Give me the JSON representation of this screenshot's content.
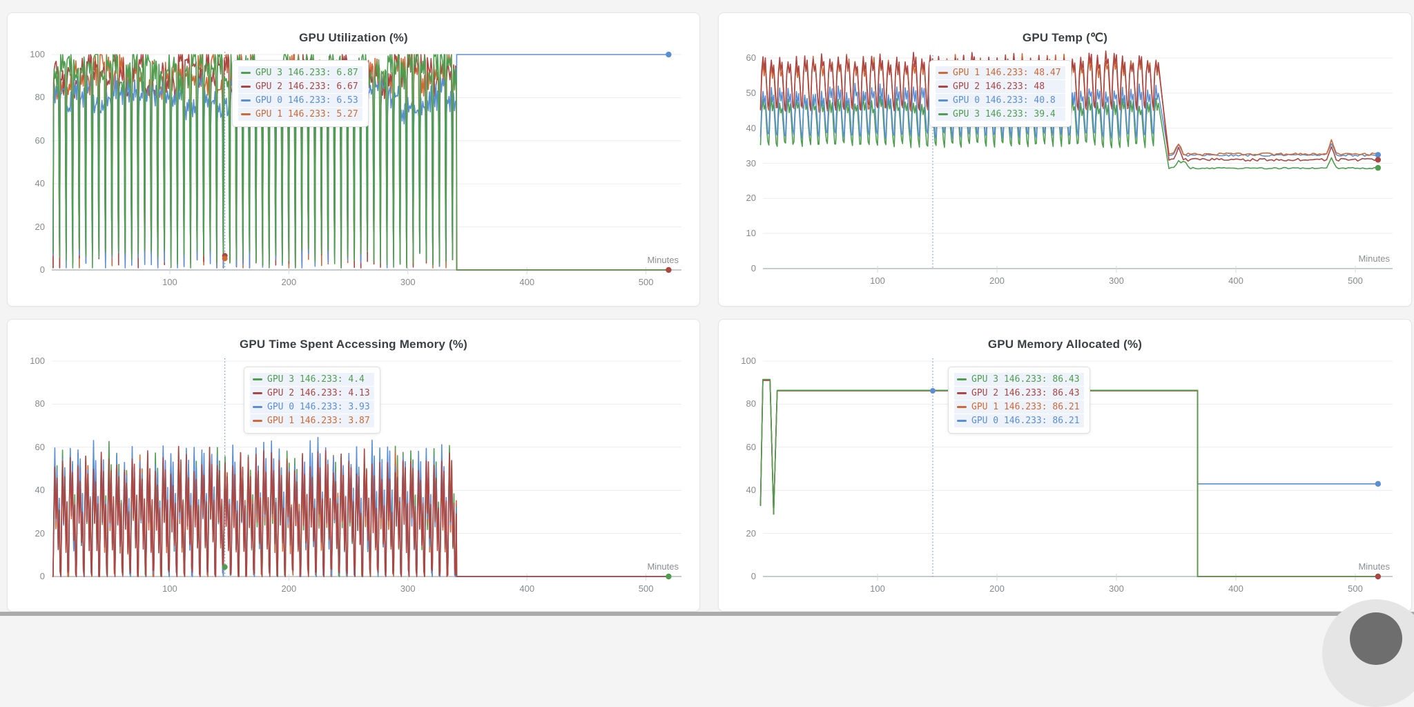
{
  "page": {
    "background": "#f4f4f5",
    "bottom_bar_color": "#ababab"
  },
  "fab": {
    "outer_color": "#e5e5e5",
    "inner_color": "#6e6e6e"
  },
  "palette": {
    "green": "#4f9e4f",
    "red": "#ab4642",
    "blue": "#5a8fd4",
    "orange": "#cd6a38"
  },
  "cursor": {
    "x_label": "146.233",
    "line_color": "#6b99d8"
  },
  "chart_data": [
    {
      "type": "line",
      "title": "GPU Utilization (%)",
      "xlabel": "Minutes",
      "ylim": [
        0,
        100
      ],
      "xlim": [
        0,
        529
      ],
      "yticks": [
        0,
        20,
        40,
        60,
        80,
        100
      ],
      "xticks": [
        100,
        200,
        300,
        400,
        500
      ],
      "grid": "horizontal",
      "legend_position": "tooltip-floating",
      "cursor_x": 146.233,
      "tooltip": {
        "left": 325,
        "top": 68,
        "rows": [
          {
            "color": "green",
            "label": "GPU 3",
            "x": "146.233",
            "value": "6.87"
          },
          {
            "color": "red",
            "label": "GPU 2",
            "x": "146.233",
            "value": "6.67"
          },
          {
            "color": "blue",
            "label": "GPU 0",
            "x": "146.233",
            "value": "6.53"
          },
          {
            "color": "orange",
            "label": "GPU 1",
            "x": "146.233",
            "value": "5.27"
          }
        ]
      },
      "series": [
        {
          "name": "GPU 1",
          "color": "orange",
          "segments": [
            {
              "mode": "osc",
              "t": [
                2,
                341
              ],
              "min": 1,
              "max": 98,
              "period": 5.5,
              "waveform": "dutyhigh",
              "seed": 7
            },
            {
              "mode": "flat",
              "t": [
                341,
                519
              ],
              "value": 0
            }
          ]
        },
        {
          "name": "GPU 2",
          "color": "red",
          "segments": [
            {
              "mode": "osc",
              "t": [
                2,
                341
              ],
              "min": 1,
              "max": 99.5,
              "period": 5.5,
              "waveform": "dutyhigh",
              "seed": 3
            },
            {
              "mode": "flat",
              "t": [
                341,
                519
              ],
              "value": 0
            }
          ]
        },
        {
          "name": "GPU 0",
          "color": "blue",
          "segments": [
            {
              "mode": "osc",
              "t": [
                2,
                341
              ],
              "min": 1,
              "max": 87,
              "period": 5.5,
              "waveform": "dutyhigh",
              "seed": 5
            },
            {
              "mode": "flat",
              "t": [
                341,
                519
              ],
              "value": 100
            }
          ]
        },
        {
          "name": "GPU 3",
          "color": "green",
          "segments": [
            {
              "mode": "osc",
              "t": [
                2,
                341
              ],
              "min": 1,
              "max": 101,
              "period": 5.5,
              "waveform": "dutyhigh",
              "seed": 9
            },
            {
              "mode": "flat",
              "t": [
                341,
                519
              ],
              "value": 0
            }
          ]
        }
      ],
      "markers": [
        {
          "x": 519,
          "y": 100,
          "color": "blue"
        },
        {
          "x": 519,
          "y": 0,
          "color": "red"
        }
      ],
      "cursor_dots": [
        {
          "y": 6.6,
          "color": "red"
        },
        {
          "y": 5.3,
          "color": "orange"
        }
      ],
      "layout": {
        "plotLeft": 64,
        "plotRight": 976,
        "plotTop": 60,
        "axisY": 372,
        "xmap": {
          "a": 62.5,
          "b": 1.7243
        },
        "ymap": {
          "zero": 372,
          "unit": 3.12
        }
      }
    },
    {
      "type": "line",
      "title": "GPU Temp (℃)",
      "xlabel": "Minutes",
      "ylim": [
        0,
        62
      ],
      "xlim": [
        0,
        529
      ],
      "yticks": [
        0,
        10,
        20,
        30,
        40,
        50,
        60
      ],
      "xticks": [
        100,
        200,
        300,
        400,
        500
      ],
      "grid": "horizontal",
      "legend_position": "tooltip-floating",
      "cursor_x": 146.233,
      "tooltip": {
        "left": 305,
        "top": 68,
        "rows": [
          {
            "color": "orange",
            "label": "GPU 1",
            "x": "146.233",
            "value": "48.47"
          },
          {
            "color": "red",
            "label": "GPU 2",
            "x": "146.233",
            "value": "48"
          },
          {
            "color": "blue",
            "label": "GPU 0",
            "x": "146.233",
            "value": "40.8"
          },
          {
            "color": "green",
            "label": "GPU 3",
            "x": "146.233",
            "value": "39.4"
          }
        ]
      },
      "series": [
        {
          "name": "GPU 3",
          "color": "green",
          "segments": [
            {
              "mode": "osc",
              "t": [
                2,
                336
              ],
              "min": 33.5,
              "max": 49,
              "period": 7,
              "waveform": "wave",
              "seed": 11
            },
            {
              "mode": "flat",
              "t": [
                344,
                519
              ],
              "value": 28.6,
              "noise": 0.2,
              "seed": 31,
              "bumps": [
                [
                  352,
                  2.2
                ],
                [
                  357,
                  2.0
                ],
                [
                  480,
                  3.0
                ]
              ]
            }
          ]
        },
        {
          "name": "GPU 0",
          "color": "blue",
          "segments": [
            {
              "mode": "osc",
              "t": [
                2,
                336
              ],
              "min": 36,
              "max": 52,
              "period": 7,
              "waveform": "wave",
              "seed": 13
            },
            {
              "mode": "flat",
              "t": [
                344,
                519
              ],
              "value": 32.3,
              "noise": 0.3,
              "seed": 33,
              "bumps": [
                [
                  352,
                  3.0
                ],
                [
                  480,
                  3.5
                ]
              ]
            }
          ]
        },
        {
          "name": "GPU 1",
          "color": "orange",
          "segments": [
            {
              "mode": "osc",
              "t": [
                2,
                336
              ],
              "min": 43.5,
              "max": 60.5,
              "period": 7,
              "waveform": "wave",
              "seed": 15
            },
            {
              "mode": "flat",
              "t": [
                344,
                519
              ],
              "value": 32.6,
              "noise": 0.35,
              "seed": 35,
              "bumps": [
                [
                  352,
                  3.2
                ],
                [
                  480,
                  3.8
                ]
              ]
            }
          ]
        },
        {
          "name": "GPU 2",
          "color": "red",
          "segments": [
            {
              "mode": "osc",
              "t": [
                2,
                336
              ],
              "min": 44,
              "max": 61.5,
              "period": 7,
              "waveform": "wave",
              "seed": 17
            },
            {
              "mode": "flat",
              "t": [
                344,
                519
              ],
              "value": 31,
              "noise": 0.4,
              "seed": 37,
              "bumps": [
                [
                  352,
                  3.2
                ],
                [
                  480,
                  3.5
                ]
              ]
            }
          ]
        }
      ],
      "markers": [
        {
          "x": 519,
          "y": 32.4,
          "color": "blue"
        },
        {
          "x": 519,
          "y": 31,
          "color": "red"
        },
        {
          "x": 519,
          "y": 28.7,
          "color": "green"
        }
      ],
      "cursor_dots": [
        {
          "y": 48.5,
          "color": "orange"
        }
      ],
      "layout": {
        "plotLeft": 64,
        "plotRight": 976,
        "plotTop": 65,
        "axisY": 370,
        "xmap": {
          "a": 57,
          "b": 1.73
        },
        "ymap": {
          "zero": 370,
          "unit": 5.083
        }
      }
    },
    {
      "type": "line",
      "title": "GPU Time Spent Accessing Memory (%)",
      "xlabel": "Minutes",
      "ylim": [
        0,
        100
      ],
      "xlim": [
        0,
        529
      ],
      "yticks": [
        0,
        20,
        40,
        60,
        80,
        100
      ],
      "xticks": [
        100,
        200,
        300,
        400,
        500
      ],
      "grid": "horizontal",
      "legend_position": "tooltip-floating",
      "cursor_x": 146.233,
      "tooltip": {
        "left": 342,
        "top": 68,
        "rows": [
          {
            "color": "green",
            "label": "GPU 3",
            "x": "146.233",
            "value": "4.4"
          },
          {
            "color": "red",
            "label": "GPU 2",
            "x": "146.233",
            "value": "4.13"
          },
          {
            "color": "blue",
            "label": "GPU 0",
            "x": "146.233",
            "value": "3.93"
          },
          {
            "color": "orange",
            "label": "GPU 1",
            "x": "146.233",
            "value": "3.87"
          }
        ]
      },
      "series": [
        {
          "name": "GPU 3",
          "color": "green",
          "segments": [
            {
              "mode": "osc",
              "t": [
                2,
                341
              ],
              "min": 0,
              "max": 62,
              "period": 6.5,
              "waveform": "spikes",
              "seed": 21
            },
            {
              "mode": "flat",
              "t": [
                341,
                519
              ],
              "value": 0
            }
          ]
        },
        {
          "name": "GPU 1",
          "color": "orange",
          "segments": [
            {
              "mode": "osc",
              "t": [
                2,
                341
              ],
              "min": 0,
              "max": 59,
              "period": 6.5,
              "waveform": "spikes",
              "seed": 23
            },
            {
              "mode": "flat",
              "t": [
                341,
                519
              ],
              "value": 0
            }
          ]
        },
        {
          "name": "GPU 0",
          "color": "blue",
          "segments": [
            {
              "mode": "osc",
              "t": [
                2,
                341
              ],
              "min": 0,
              "max": 64,
              "period": 6.5,
              "waveform": "spikes",
              "seed": 25
            },
            {
              "mode": "flat",
              "t": [
                341,
                519
              ],
              "value": 0
            }
          ]
        },
        {
          "name": "GPU 2",
          "color": "red",
          "segments": [
            {
              "mode": "osc",
              "t": [
                2,
                341
              ],
              "min": 0,
              "max": 60,
              "period": 6.5,
              "waveform": "spikes",
              "seed": 27
            },
            {
              "mode": "flat",
              "t": [
                341,
                519
              ],
              "value": 0
            }
          ]
        }
      ],
      "markers": [
        {
          "x": 519,
          "y": 0,
          "color": "green"
        }
      ],
      "cursor_dots": [
        {
          "y": 4.4,
          "color": "green"
        }
      ],
      "layout": {
        "plotLeft": 64,
        "plotRight": 976,
        "plotTop": 60,
        "axisY": 372,
        "xmap": {
          "a": 62.5,
          "b": 1.7243
        },
        "ymap": {
          "zero": 372,
          "unit": 3.12
        }
      }
    },
    {
      "type": "line",
      "title": "GPU Memory Allocated (%)",
      "xlabel": "Minutes",
      "ylim": [
        0,
        100
      ],
      "xlim": [
        0,
        529
      ],
      "yticks": [
        0,
        20,
        40,
        60,
        80,
        100
      ],
      "xticks": [
        100,
        200,
        300,
        400,
        500
      ],
      "grid": "horizontal",
      "legend_position": "tooltip-floating",
      "cursor_x": 146.233,
      "tooltip": {
        "left": 332,
        "top": 68,
        "rows": [
          {
            "color": "green",
            "label": "GPU 3",
            "x": "146.233",
            "value": "86.43"
          },
          {
            "color": "red",
            "label": "GPU 2",
            "x": "146.233",
            "value": "86.43"
          },
          {
            "color": "orange",
            "label": "GPU 1",
            "x": "146.233",
            "value": "86.21"
          },
          {
            "color": "blue",
            "label": "GPU 0",
            "x": "146.233",
            "value": "86.21"
          }
        ]
      },
      "series": [
        {
          "name": "GPU 0",
          "color": "blue",
          "segments": [
            {
              "mode": "points",
              "pts": [
                [
                  2,
                  33
                ],
                [
                  4,
                  91
                ],
                [
                  10,
                  91
                ],
                [
                  13,
                  29
                ],
                [
                  16,
                  86.2
                ]
              ]
            },
            {
              "mode": "flat",
              "t": [
                16,
                368
              ],
              "value": 86.2
            },
            {
              "mode": "flat",
              "t": [
                368,
                519
              ],
              "value": 43
            }
          ]
        },
        {
          "name": "GPU 1",
          "color": "orange",
          "segments": [
            {
              "mode": "points",
              "pts": [
                [
                  2,
                  33
                ],
                [
                  4,
                  91
                ],
                [
                  10,
                  91
                ],
                [
                  13,
                  29
                ],
                [
                  16,
                  86.2
                ]
              ]
            },
            {
              "mode": "flat",
              "t": [
                16,
                368
              ],
              "value": 86.2
            },
            {
              "mode": "flat",
              "t": [
                368,
                519
              ],
              "value": 0
            }
          ]
        },
        {
          "name": "GPU 2",
          "color": "red",
          "segments": [
            {
              "mode": "points",
              "pts": [
                [
                  2,
                  33
                ],
                [
                  4,
                  91.2
                ],
                [
                  10,
                  91.2
                ],
                [
                  13,
                  29
                ],
                [
                  16,
                  86.4
                ]
              ]
            },
            {
              "mode": "flat",
              "t": [
                16,
                368
              ],
              "value": 86.4
            },
            {
              "mode": "flat",
              "t": [
                368,
                519
              ],
              "value": 0
            }
          ]
        },
        {
          "name": "GPU 3",
          "color": "green",
          "segments": [
            {
              "mode": "points",
              "pts": [
                [
                  2,
                  33
                ],
                [
                  4,
                  91.5
                ],
                [
                  10,
                  91.5
                ],
                [
                  13,
                  29
                ],
                [
                  16,
                  86.43
                ]
              ]
            },
            {
              "mode": "flat",
              "t": [
                16,
                368
              ],
              "value": 86.43
            },
            {
              "mode": "flat",
              "t": [
                368,
                519
              ],
              "value": 0
            }
          ]
        }
      ],
      "markers": [
        {
          "x": 519,
          "y": 43,
          "color": "blue"
        },
        {
          "x": 519,
          "y": 0,
          "color": "red"
        }
      ],
      "cursor_dots": [
        {
          "y": 86.2,
          "color": "blue"
        }
      ],
      "layout": {
        "plotLeft": 64,
        "plotRight": 976,
        "plotTop": 60,
        "axisY": 372,
        "xmap": {
          "a": 57,
          "b": 1.73
        },
        "ymap": {
          "zero": 372,
          "unit": 3.12
        }
      }
    }
  ]
}
